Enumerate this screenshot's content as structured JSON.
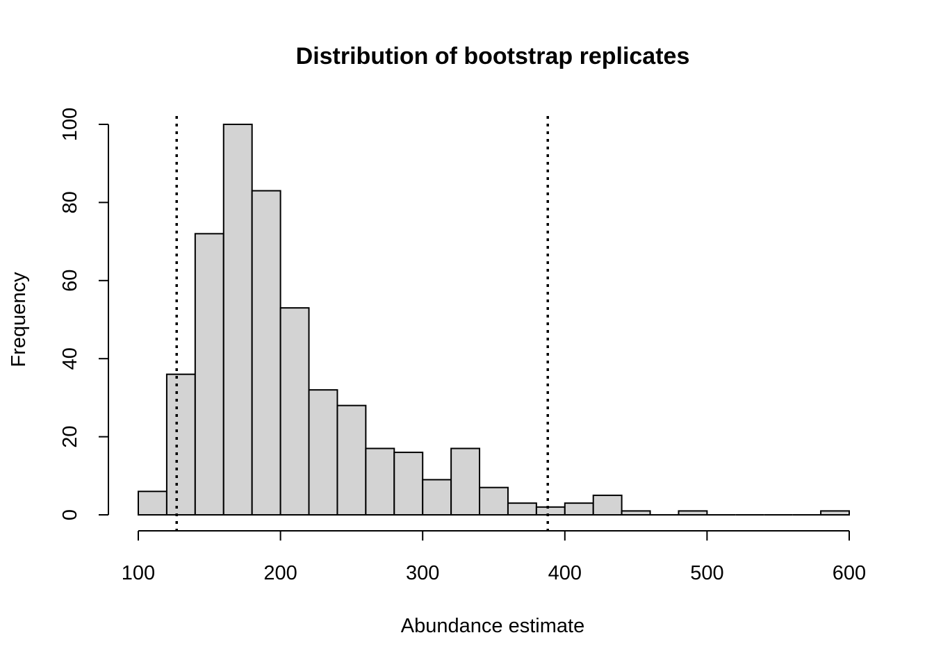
{
  "chart_data": {
    "type": "bar",
    "title": "Distribution of bootstrap replicates",
    "xlabel": "Abundance estimate",
    "ylabel": "Frequency",
    "bin_width": 20,
    "bins": [
      {
        "start": 100,
        "end": 120,
        "count": 6
      },
      {
        "start": 120,
        "end": 140,
        "count": 36
      },
      {
        "start": 140,
        "end": 160,
        "count": 72
      },
      {
        "start": 160,
        "end": 180,
        "count": 100
      },
      {
        "start": 180,
        "end": 200,
        "count": 83
      },
      {
        "start": 200,
        "end": 220,
        "count": 53
      },
      {
        "start": 220,
        "end": 240,
        "count": 32
      },
      {
        "start": 240,
        "end": 260,
        "count": 28
      },
      {
        "start": 260,
        "end": 280,
        "count": 17
      },
      {
        "start": 280,
        "end": 300,
        "count": 16
      },
      {
        "start": 300,
        "end": 320,
        "count": 9
      },
      {
        "start": 320,
        "end": 340,
        "count": 17
      },
      {
        "start": 340,
        "end": 360,
        "count": 7
      },
      {
        "start": 360,
        "end": 380,
        "count": 3
      },
      {
        "start": 380,
        "end": 400,
        "count": 2
      },
      {
        "start": 400,
        "end": 420,
        "count": 3
      },
      {
        "start": 420,
        "end": 440,
        "count": 5
      },
      {
        "start": 440,
        "end": 460,
        "count": 1
      },
      {
        "start": 460,
        "end": 480,
        "count": 0
      },
      {
        "start": 480,
        "end": 500,
        "count": 1
      },
      {
        "start": 500,
        "end": 520,
        "count": 0
      },
      {
        "start": 520,
        "end": 540,
        "count": 0
      },
      {
        "start": 540,
        "end": 560,
        "count": 0
      },
      {
        "start": 560,
        "end": 580,
        "count": 0
      },
      {
        "start": 580,
        "end": 600,
        "count": 1
      }
    ],
    "vlines": [
      127,
      388
    ],
    "vline_style": "dotted",
    "xlim": [
      100,
      600
    ],
    "ylim": [
      0,
      100
    ],
    "xticks": [
      100,
      200,
      300,
      400,
      500,
      600
    ],
    "yticks": [
      0,
      20,
      40,
      60,
      80,
      100
    ],
    "bar_color": "#d3d3d3",
    "edge_color": "#000000",
    "grid": false,
    "legend": "none"
  }
}
